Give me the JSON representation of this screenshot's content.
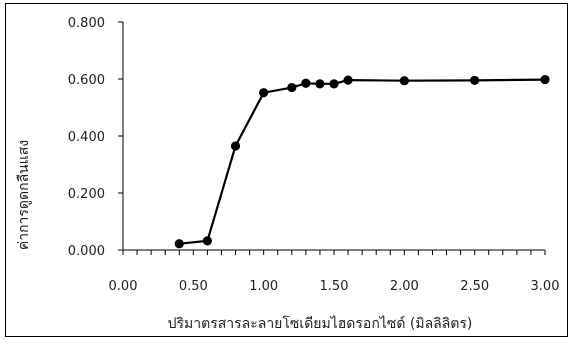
{
  "chart_data": {
    "type": "line",
    "title": "",
    "xlabel": "ปริมาตรสารละลายโซเดียมไฮดรอกไซด์ (มิลลิลิตร)",
    "ylabel": "ค่าการดูดกลืนแสง",
    "xlim": [
      0,
      3
    ],
    "ylim": [
      0,
      0.8
    ],
    "x_ticks": [
      0.0,
      0.5,
      1.0,
      1.5,
      2.0,
      2.5,
      3.0
    ],
    "x_tick_labels": [
      "0.00",
      "0.50",
      "1.00",
      "1.50",
      "2.00",
      "2.50",
      "3.00"
    ],
    "y_ticks": [
      0.0,
      0.2,
      0.4,
      0.6,
      0.8
    ],
    "y_tick_labels": [
      "0.000",
      "0.200",
      "0.400",
      "0.600",
      "0.800"
    ],
    "x_minor_step": 0.1,
    "grid": false,
    "legend": "none",
    "series": [
      {
        "color": "#000000",
        "x": [
          0.4,
          0.6,
          0.8,
          1.0,
          1.2,
          1.3,
          1.4,
          1.5,
          1.6,
          2.0,
          2.5,
          3.0
        ],
        "y": [
          0.022,
          0.032,
          0.365,
          0.552,
          0.57,
          0.585,
          0.583,
          0.583,
          0.596,
          0.594,
          0.595,
          0.598
        ]
      }
    ]
  }
}
